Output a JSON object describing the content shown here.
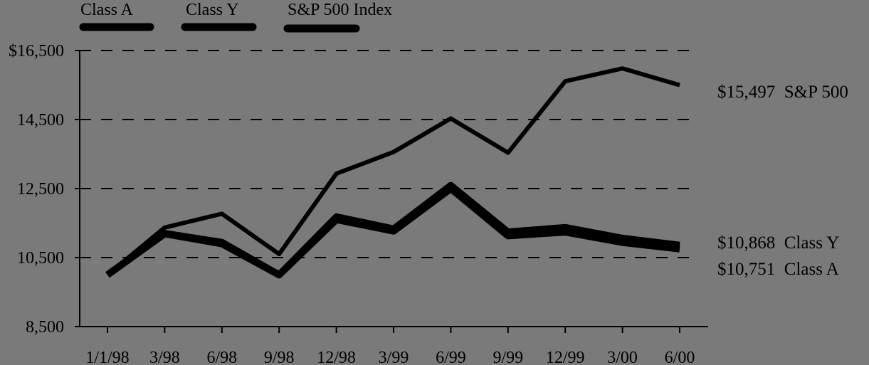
{
  "chart_data": {
    "type": "line",
    "categories": [
      "1/1/98",
      "3/98",
      "6/98",
      "9/98",
      "12/98",
      "3/99",
      "6/99",
      "9/99",
      "12/99",
      "3/00",
      "6/00"
    ],
    "ylim": [
      8500,
      16500
    ],
    "yticks": [
      8500,
      10500,
      12500,
      14500,
      16500
    ],
    "ytick_labels": [
      "8,500",
      "10,500",
      "12,500",
      "14,500",
      "$16,500"
    ],
    "grid": "horizontal dashed",
    "legend_position": "top-left",
    "series": [
      {
        "name": "Class A",
        "values": [
          10000,
          11190,
          10900,
          10000,
          11600,
          11270,
          12500,
          11130,
          11240,
          10940,
          10751
        ],
        "end_label": "$10,751  Class A"
      },
      {
        "name": "Class Y",
        "values": [
          10000,
          11210,
          10950,
          10010,
          11690,
          11340,
          12600,
          11250,
          11380,
          11070,
          10868
        ],
        "end_label": "$10,868  Class Y"
      },
      {
        "name": "S&P 500 Index",
        "values": [
          10000,
          11370,
          11770,
          10600,
          12930,
          13560,
          14530,
          13540,
          15610,
          15980,
          15497
        ],
        "end_label": "$15,497  S&P 500"
      }
    ]
  }
}
